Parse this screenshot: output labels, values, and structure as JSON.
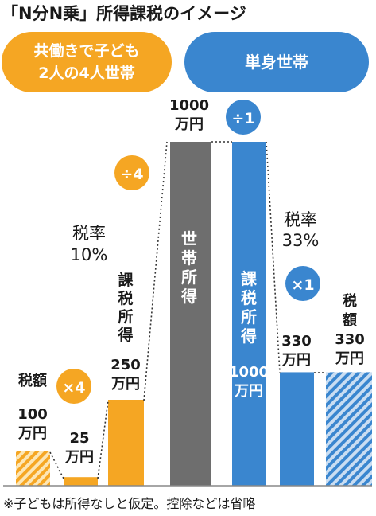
{
  "title": "「N分N乗」所得課税のイメージ",
  "footnote": "※子どもは所得なしと仮定。控除などは省略",
  "colors": {
    "orange": "#f5a623",
    "gray": "#6e6e6e",
    "blue": "#3a86cf",
    "baseline": "#888888"
  },
  "chart_data": {
    "type": "bar",
    "title": "「N分N乗」所得課税のイメージ",
    "groups": [
      {
        "name": "共働きで子ども2人の4人世帯",
        "color": "#f5a623"
      },
      {
        "name": "単身世帯",
        "color": "#3a86cf"
      }
    ],
    "bars": [
      {
        "group": "共働きで子ども2人の4人世帯",
        "label": "税額",
        "value": 100,
        "unit": "万円",
        "hatched": true
      },
      {
        "group": "共働きで子ども2人の4人世帯",
        "label": "",
        "value": 25,
        "unit": "万円",
        "hatched": false
      },
      {
        "group": "共働きで子ども2人の4人世帯",
        "label": "課税所得",
        "value": 250,
        "unit": "万円",
        "hatched": false
      },
      {
        "group": "世帯所得",
        "label": "世帯所得",
        "value": 1000,
        "unit": "万円",
        "hatched": false
      },
      {
        "group": "単身世帯",
        "label": "課税所得",
        "value": 1000,
        "unit": "万円",
        "hatched": false
      },
      {
        "group": "単身世帯",
        "label": "",
        "value": 330,
        "unit": "万円",
        "hatched": false
      },
      {
        "group": "単身世帯",
        "label": "税額",
        "value": 330,
        "unit": "万円",
        "hatched": true
      }
    ],
    "operations": [
      "×4",
      "÷4",
      "÷1",
      "×1"
    ],
    "tax_rates": [
      {
        "label": "税率",
        "value": "10%"
      },
      {
        "label": "税率",
        "value": "33%"
      }
    ]
  },
  "labels": {
    "legend_orange": [
      "共働きで子ども",
      "2人の4人世帯"
    ],
    "legend_blue": "単身世帯",
    "op_times4": "×4",
    "op_div4": "÷4",
    "op_div1": "÷1",
    "op_times1": "×1",
    "rate_label": "税率",
    "rate_10": "10%",
    "rate_33": "33%",
    "b1_label": "税額",
    "b1_value": "100",
    "b1_unit": "万円",
    "b2_value": "25",
    "b2_unit": "万円",
    "b3_label": [
      "課",
      "税",
      "所",
      "得"
    ],
    "b3_value": "250",
    "b3_unit": "万円",
    "b4_value": "1000",
    "b4_unit": "万円",
    "b4_inner": [
      "世",
      "帯",
      "所",
      "得"
    ],
    "b5_inner": [
      "課",
      "税",
      "所",
      "得"
    ],
    "b5_value": "1000",
    "b5_unit": "万円",
    "b6_value": "330",
    "b6_unit": "万円",
    "b7_label": [
      "税",
      "額"
    ],
    "b7_value": "330",
    "b7_unit": "万円"
  }
}
